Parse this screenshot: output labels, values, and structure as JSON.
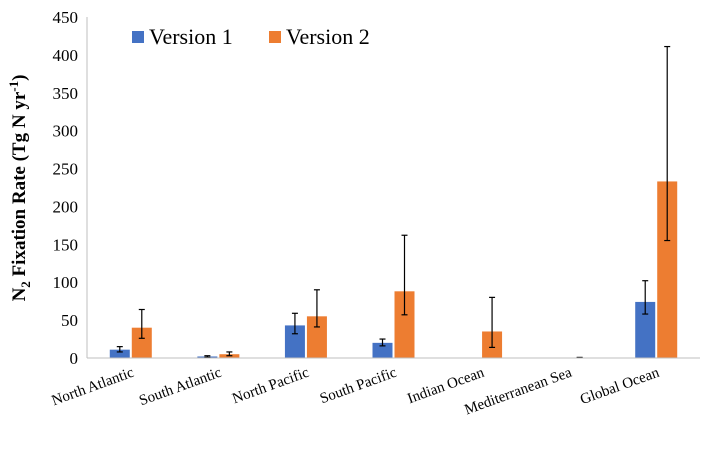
{
  "chart_data": {
    "type": "bar",
    "title": "",
    "xlabel": "",
    "ylabel": {
      "prefix": "N",
      "subscript": "2",
      "text": " Fixation Rate (Tg N yr",
      "superscript": "-1",
      "suffix": ")"
    },
    "ylim": [
      0,
      450
    ],
    "yticks": [
      0,
      50,
      100,
      150,
      200,
      250,
      300,
      350,
      400,
      450
    ],
    "grid": false,
    "legend_position": "top-left",
    "categories": [
      "North Atlantic",
      "South Atlantic",
      "North Pacific",
      "South Pacific",
      "Indian Ocean",
      "Mediterranean Sea",
      "Global Ocean"
    ],
    "series": [
      {
        "name": "Version 1",
        "color": "#4472C4",
        "values": [
          11,
          2,
          43,
          20,
          0,
          0,
          74
        ],
        "err_low": [
          8,
          1,
          32,
          16,
          null,
          null,
          58
        ],
        "err_high": [
          15,
          3,
          59,
          25,
          null,
          null,
          102
        ]
      },
      {
        "name": "Version 2",
        "color": "#ED7D31",
        "values": [
          40,
          5,
          55,
          88,
          35,
          0.5,
          233
        ],
        "err_low": [
          26,
          3,
          41,
          57,
          14,
          0.3,
          155
        ],
        "err_high": [
          64,
          8,
          90,
          162,
          80,
          0.8,
          411
        ]
      }
    ]
  }
}
